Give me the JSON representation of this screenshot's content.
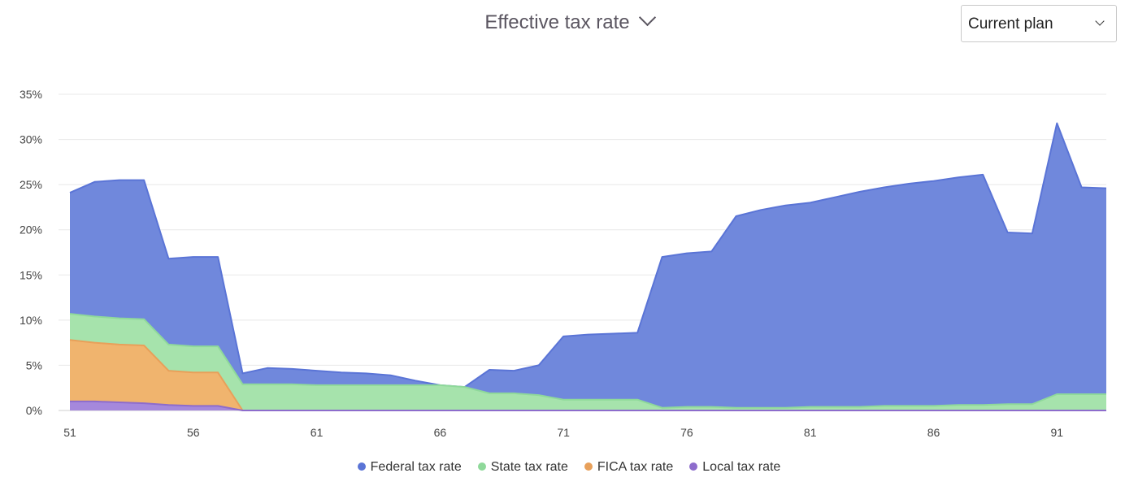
{
  "header": {
    "title": "Effective tax rate",
    "title_icon": "chevron-down-icon",
    "plan_select": {
      "value": "Current plan",
      "icon": "chevron-down-icon"
    }
  },
  "chart_data": {
    "type": "area",
    "stacked": true,
    "title": "Effective tax rate",
    "xlabel": "",
    "ylabel": "",
    "xlim": [
      51,
      93
    ],
    "ylim": [
      0,
      35
    ],
    "x_ticks": [
      51,
      56,
      61,
      66,
      71,
      76,
      81,
      86,
      91
    ],
    "y_ticks": [
      0,
      5,
      10,
      15,
      20,
      25,
      30,
      35
    ],
    "y_tick_suffix": "%",
    "grid": true,
    "legend_position": "bottom",
    "x": [
      51,
      52,
      53,
      54,
      55,
      56,
      57,
      58,
      59,
      60,
      61,
      62,
      63,
      64,
      65,
      66,
      67,
      68,
      69,
      70,
      71,
      72,
      73,
      74,
      75,
      76,
      77,
      78,
      79,
      80,
      81,
      82,
      83,
      84,
      85,
      86,
      87,
      88,
      89,
      90,
      91,
      92,
      93
    ],
    "series": [
      {
        "name": "Federal tax rate",
        "color": "#5a74d6",
        "fill": "#7088dc",
        "values": [
          13.4,
          14.9,
          15.3,
          15.4,
          9.5,
          9.9,
          9.9,
          1.2,
          1.8,
          1.7,
          1.6,
          1.4,
          1.3,
          1.1,
          0.5,
          0.0,
          0.0,
          2.6,
          2.5,
          3.3,
          7.0,
          7.2,
          7.3,
          7.4,
          16.7,
          17.0,
          17.2,
          21.2,
          21.9,
          22.4,
          22.6,
          23.2,
          23.8,
          24.2,
          24.6,
          24.9,
          25.2,
          25.5,
          19.0,
          18.9,
          30.0,
          22.9,
          22.8
        ]
      },
      {
        "name": "State tax rate",
        "color": "#8fd99a",
        "fill": "#a6e3ac",
        "values": [
          2.9,
          2.9,
          2.9,
          2.9,
          2.9,
          2.9,
          2.9,
          2.9,
          2.9,
          2.9,
          2.8,
          2.8,
          2.8,
          2.8,
          2.8,
          2.8,
          2.6,
          1.9,
          1.9,
          1.7,
          1.2,
          1.2,
          1.2,
          1.2,
          0.3,
          0.4,
          0.4,
          0.3,
          0.3,
          0.3,
          0.4,
          0.4,
          0.4,
          0.5,
          0.5,
          0.5,
          0.6,
          0.6,
          0.7,
          0.7,
          1.8,
          1.8,
          1.8
        ]
      },
      {
        "name": "FICA tax rate",
        "color": "#e8a05a",
        "fill": "#f0b46e",
        "values": [
          6.8,
          6.5,
          6.4,
          6.4,
          3.8,
          3.7,
          3.7,
          0,
          0,
          0,
          0,
          0,
          0,
          0,
          0,
          0,
          0,
          0,
          0,
          0,
          0,
          0,
          0,
          0,
          0,
          0,
          0,
          0,
          0,
          0,
          0,
          0,
          0,
          0,
          0,
          0,
          0,
          0,
          0,
          0,
          0,
          0,
          0
        ]
      },
      {
        "name": "Local tax rate",
        "color": "#8d6ccc",
        "fill": "#a588dc",
        "values": [
          1.0,
          1.0,
          0.9,
          0.8,
          0.6,
          0.5,
          0.5,
          0,
          0,
          0,
          0,
          0,
          0,
          0,
          0,
          0,
          0,
          0,
          0,
          0,
          0,
          0,
          0,
          0,
          0,
          0,
          0,
          0,
          0,
          0,
          0,
          0,
          0,
          0,
          0,
          0,
          0,
          0,
          0,
          0,
          0,
          0,
          0
        ]
      }
    ]
  }
}
